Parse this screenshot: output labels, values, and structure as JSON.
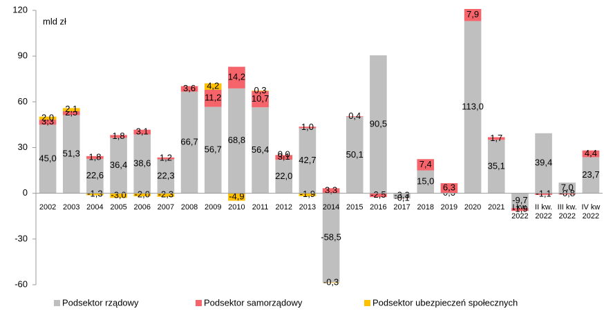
{
  "chart_data": {
    "type": "stacked_bar",
    "annotation": "mld zł",
    "categories": [
      "2002",
      "2003",
      "2004",
      "2005",
      "2006",
      "2007",
      "2008",
      "2009",
      "2010",
      "2011",
      "2012",
      "2013",
      "2014",
      "2015",
      "2016",
      "2017",
      "2018",
      "2019",
      "2020",
      "2021",
      "I kw. 2022",
      "II kw. 2022",
      "III kw. 2022",
      "IV kw 2022"
    ],
    "series": [
      {
        "name": "Podsektor rządowy",
        "color": "#bfbfbf",
        "values": [
          45.0,
          51.3,
          22.6,
          36.4,
          38.6,
          22.3,
          66.7,
          56.7,
          68.8,
          56.4,
          22.0,
          42.7,
          -58.5,
          50.1,
          90.5,
          -3.3,
          15.0,
          0.3,
          113.0,
          35.1,
          -9.7,
          39.4,
          7.0,
          23.7
        ],
        "value_labels": [
          "45,0",
          "51,3",
          "22,6",
          "36,4",
          "38,6",
          "22,3",
          "66,7",
          "56,7",
          "68,8",
          "56,4",
          "22,0",
          "42,7",
          "-58,5",
          "50,1",
          "90,5",
          "-3,3",
          "15,0",
          "0,3",
          "113,0",
          "35,1",
          "-9,7",
          "39,4",
          "7,0",
          "23,7"
        ]
      },
      {
        "name": "Podsektor samorządowy",
        "color": "#f4646a",
        "values": [
          3.3,
          2.5,
          1.8,
          1.8,
          3.1,
          1.2,
          3.6,
          11.2,
          14.2,
          10.7,
          3.1,
          1.0,
          3.3,
          0.4,
          -2.5,
          -0.1,
          7.4,
          6.3,
          7.9,
          1.7,
          -1.9,
          -1.1,
          -0.8,
          4.4
        ],
        "value_labels": [
          "3,3",
          "2,5",
          "1,8",
          "1,8",
          "3,1",
          "1,2",
          "3,6",
          "11,2",
          "14,2",
          "10,7",
          "3,1",
          "1,0",
          "3,3",
          "0,4",
          "-2,5",
          "-0,1",
          "7,4",
          "6,3",
          "7,9",
          "1,7",
          "-1,9",
          "-1,1",
          "-0,8",
          "4,4"
        ]
      },
      {
        "name": "Podsektor ubezpieczeń społecznych",
        "color": "#ffc000",
        "values": [
          2.0,
          2.1,
          -1.3,
          -3.0,
          -2.0,
          -2.3,
          null,
          4.2,
          -4.9,
          0.3,
          0.0,
          -1.9,
          -0.3,
          null,
          null,
          null,
          null,
          null,
          null,
          null,
          null,
          null,
          null,
          null
        ],
        "value_labels": [
          "2,0",
          "2,1",
          "-1,3",
          "-3,0",
          "-2,0",
          "-2,3",
          null,
          "4,2",
          "-4,9",
          "0,3",
          "0,0",
          "-1,9",
          "-0,3",
          null,
          null,
          null,
          null,
          null,
          null,
          null,
          null,
          null,
          null,
          null
        ]
      }
    ],
    "ylim": [
      -60,
      120
    ],
    "yticks": [
      -60,
      -30,
      0,
      30,
      60,
      90,
      120
    ],
    "legend": "bottom"
  }
}
